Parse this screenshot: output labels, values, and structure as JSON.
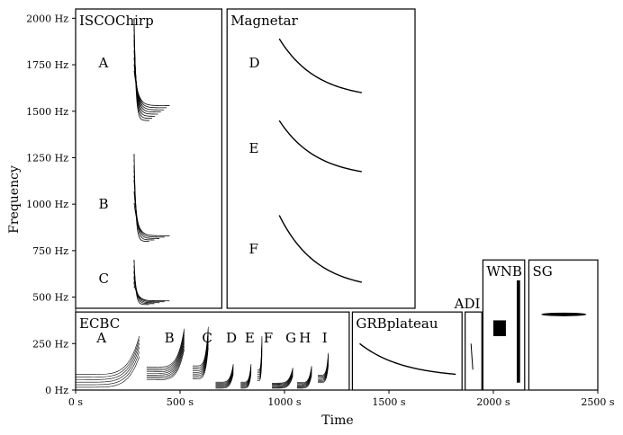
{
  "chart_data": {
    "type": "scatter",
    "xlabel": "Time",
    "ylabel": "Frequency",
    "xlim": [
      0,
      2500
    ],
    "ylim": [
      0,
      2050
    ],
    "x_unit": "s",
    "y_unit": "Hz",
    "x_ticks": [
      {
        "value": 0,
        "label": "0 s"
      },
      {
        "value": 500,
        "label": "500 s"
      },
      {
        "value": 1000,
        "label": "1000 s"
      },
      {
        "value": 1500,
        "label": "1500 s"
      },
      {
        "value": 2000,
        "label": "2000 s"
      },
      {
        "value": 2500,
        "label": "2500 s"
      }
    ],
    "y_ticks": [
      {
        "value": 0,
        "label": "0 Hz"
      },
      {
        "value": 250,
        "label": "250 Hz"
      },
      {
        "value": 500,
        "label": "500 Hz"
      },
      {
        "value": 750,
        "label": "750 Hz"
      },
      {
        "value": 1000,
        "label": "1000 Hz"
      },
      {
        "value": 1250,
        "label": "1250 Hz"
      },
      {
        "value": 1500,
        "label": "1500 Hz"
      },
      {
        "value": 1750,
        "label": "1750 Hz"
      },
      {
        "value": 2000,
        "label": "2000 Hz"
      }
    ],
    "regions": [
      {
        "name": "ISCOChirp",
        "x": [
          0,
          700
        ],
        "y": [
          440,
          2050
        ],
        "sublabels": [
          {
            "text": "A",
            "x": 110,
            "y": 1760
          },
          {
            "text": "B",
            "x": 110,
            "y": 1000
          },
          {
            "text": "C",
            "x": 110,
            "y": 600
          }
        ]
      },
      {
        "name": "Magnetar",
        "x": [
          725,
          1625
        ],
        "y": [
          440,
          2050
        ],
        "sublabels": [
          {
            "text": "D",
            "x": 105,
            "y": 1760
          },
          {
            "text": "E",
            "x": 105,
            "y": 1300
          },
          {
            "text": "F",
            "x": 105,
            "y": 760
          }
        ]
      },
      {
        "name": "ECBC",
        "x": [
          0,
          1310
        ],
        "y": [
          0,
          420
        ],
        "sublabels": [
          {
            "text": "A",
            "x": 100,
            "y": 280
          },
          {
            "text": "B",
            "x": 425,
            "y": 280
          },
          {
            "text": "C",
            "x": 605,
            "y": 280
          },
          {
            "text": "D",
            "x": 720,
            "y": 280
          },
          {
            "text": "E",
            "x": 810,
            "y": 280
          },
          {
            "text": "F",
            "x": 900,
            "y": 280
          },
          {
            "text": "G",
            "x": 1005,
            "y": 280
          },
          {
            "text": "H",
            "x": 1070,
            "y": 280
          },
          {
            "text": "I",
            "x": 1180,
            "y": 280
          }
        ]
      },
      {
        "name": "GRBplateau",
        "x": [
          1325,
          1850
        ],
        "y": [
          0,
          420
        ],
        "sublabels": []
      },
      {
        "name": "ADI",
        "x": [
          1865,
          1945
        ],
        "y": [
          0,
          420
        ],
        "sublabels": []
      },
      {
        "name": "WNB",
        "x": [
          1950,
          2150
        ],
        "y": [
          0,
          700
        ],
        "sublabels": []
      },
      {
        "name": "SG",
        "x": [
          2170,
          2500
        ],
        "y": [
          0,
          700
        ],
        "sublabels": []
      }
    ],
    "signals": [
      {
        "group": "ISCO-A",
        "kind": "chirp",
        "x_start": 280,
        "count": 8,
        "f_peak": 2000,
        "f_end_min": 1450,
        "f_end_max": 1530,
        "x_end": 450
      },
      {
        "group": "ISCO-B",
        "kind": "chirp",
        "x_start": 280,
        "count": 5,
        "f_peak": 1270,
        "f_end_min": 800,
        "f_end_max": 830,
        "x_end": 450
      },
      {
        "group": "ISCO-C",
        "kind": "chirp",
        "x_start": 280,
        "count": 5,
        "f_peak": 700,
        "f_end_min": 460,
        "f_end_max": 480,
        "x_end": 450
      },
      {
        "group": "Magnetar-D",
        "kind": "decay",
        "x_start": 975,
        "x_end": 1370,
        "f_start": 1890,
        "f_end": 1600
      },
      {
        "group": "Magnetar-E",
        "kind": "decay",
        "x_start": 975,
        "x_end": 1370,
        "f_start": 1450,
        "f_end": 1175
      },
      {
        "group": "Magnetar-F",
        "kind": "decay",
        "x_start": 975,
        "x_end": 1370,
        "f_start": 940,
        "f_end": 580
      },
      {
        "group": "ECBC-A",
        "kind": "ecbc",
        "x_start": 0,
        "x_end": 305,
        "f_low": 15,
        "f_high": 290,
        "count": 6
      },
      {
        "group": "ECBC-B",
        "kind": "ecbc",
        "x_start": 340,
        "x_end": 520,
        "f_low": 55,
        "f_high": 330,
        "count": 9
      },
      {
        "group": "ECBC-C",
        "kind": "ecbc",
        "x_start": 560,
        "x_end": 635,
        "f_low": 60,
        "f_high": 340,
        "count": 9
      },
      {
        "group": "ECBC-D",
        "kind": "ecbc",
        "x_start": 670,
        "x_end": 755,
        "f_low": 10,
        "f_high": 140,
        "count": 8
      },
      {
        "group": "ECBC-E",
        "kind": "ecbc",
        "x_start": 790,
        "x_end": 840,
        "f_low": 10,
        "f_high": 140,
        "count": 8
      },
      {
        "group": "ECBC-F",
        "kind": "ecbc",
        "x_start": 870,
        "x_end": 892,
        "f_low": 50,
        "f_high": 290,
        "count": 8
      },
      {
        "group": "ECBC-G",
        "kind": "ecbc",
        "x_start": 940,
        "x_end": 1040,
        "f_low": 10,
        "f_high": 120,
        "count": 8
      },
      {
        "group": "ECBC-H",
        "kind": "ecbc",
        "x_start": 1060,
        "x_end": 1130,
        "f_low": 10,
        "f_high": 130,
        "count": 8
      },
      {
        "group": "ECBC-I",
        "kind": "ecbc",
        "x_start": 1160,
        "x_end": 1210,
        "f_low": 40,
        "f_high": 200,
        "count": 8
      },
      {
        "group": "GRBplateau",
        "kind": "decay",
        "x_start": 1360,
        "x_end": 1820,
        "f_start": 250,
        "f_end": 85
      },
      {
        "group": "ADI",
        "kind": "adi",
        "x": 1893,
        "f_start": 250,
        "f_end": 110
      },
      {
        "group": "WNB",
        "kind": "box",
        "x": [
          2000,
          2060
        ],
        "f": [
          290,
          375
        ]
      },
      {
        "group": "WNB",
        "kind": "box",
        "x": [
          2112,
          2128
        ],
        "f": [
          40,
          590
        ]
      },
      {
        "group": "SG",
        "kind": "sg",
        "x": [
          2230,
          2445
        ],
        "f": 407
      }
    ]
  }
}
